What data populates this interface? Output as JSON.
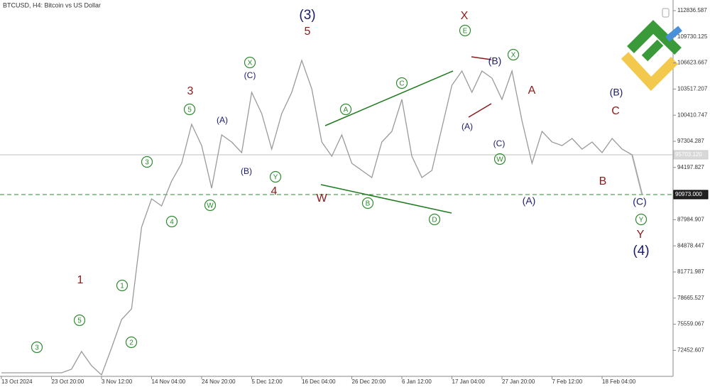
{
  "chart_data": {
    "type": "line",
    "title": "BTCUSD, H4:  Bitcoin vs US Dollar",
    "categories": [
      "13 Oct 2024",
      null,
      null,
      null,
      null,
      "23 Oct 20:00",
      null,
      null,
      null,
      null,
      "3 Nov 12:00",
      null,
      null,
      null,
      null,
      "14 Nov 04:00",
      null,
      null,
      null,
      null,
      "24 Nov 20:00",
      null,
      null,
      null,
      null,
      "5 Dec 12:00",
      null,
      null,
      null,
      null,
      "16 Dec 04:00",
      null,
      null,
      null,
      null,
      "26 Dec 20:00",
      null,
      null,
      null,
      null,
      "6 Jan 12:00",
      null,
      null,
      null,
      null,
      "17 Jan 04:00",
      null,
      null,
      null,
      null,
      "27 Jan 20:00",
      null,
      null,
      null,
      null,
      "7 Feb 12:00",
      null,
      null,
      null,
      null,
      "18 Feb 04:00",
      null,
      null,
      null,
      null
    ],
    "series": [
      {
        "color": "#9a9a9a",
        "values": [
          69783,
          69783,
          69783,
          69783,
          69783,
          69783,
          69783,
          70205,
          72315,
          70627,
          69530,
          72737,
          76114,
          77381,
          87089,
          90466,
          89621,
          92576,
          94687,
          99330,
          96797,
          91732,
          98063,
          97219,
          95953,
          103129,
          100596,
          96375,
          100596,
          103129,
          106928,
          103551,
          97219,
          95531,
          98063,
          94687,
          93842,
          92998,
          97219,
          98486,
          102284,
          95531,
          92998,
          93842,
          98908,
          103973,
          105661,
          103129,
          105661,
          104817,
          102284,
          105661,
          99752,
          94687,
          98486,
          97219,
          96797,
          97641,
          96375,
          97219,
          95953,
          97641,
          96375,
          95703.12,
          null
        ]
      },
      {
        "color": "#a8a8a8",
        "values": [
          null,
          null,
          null,
          null,
          null,
          null,
          null,
          null,
          null,
          null,
          null,
          null,
          null,
          null,
          null,
          null,
          null,
          null,
          null,
          null,
          null,
          null,
          null,
          null,
          null,
          null,
          null,
          null,
          null,
          null,
          null,
          null,
          null,
          null,
          null,
          null,
          null,
          null,
          null,
          null,
          null,
          null,
          null,
          null,
          null,
          null,
          null,
          null,
          null,
          null,
          null,
          null,
          null,
          null,
          null,
          null,
          null,
          null,
          null,
          null,
          null,
          null,
          null,
          95703.12,
          90973
        ]
      }
    ],
    "ylim": [
      69363,
      114103
    ],
    "yticks": [
      {
        "value": 112836.587,
        "label": "112836.587"
      },
      {
        "value": 109730.125,
        "label": "109730.125"
      },
      {
        "value": 106623.667,
        "label": "106623.667"
      },
      {
        "value": 103517.207,
        "label": "103517.207"
      },
      {
        "value": 100410.747,
        "label": "100410.747"
      },
      {
        "value": 97304.287,
        "label": "97304.287"
      },
      {
        "value": 94197.827,
        "label": "94197.827"
      },
      {
        "value": 87984.907,
        "label": "87984.907"
      },
      {
        "value": 84878.447,
        "label": "84878.447"
      },
      {
        "value": 81771.987,
        "label": "81771.987"
      },
      {
        "value": 78665.527,
        "label": "78665.527"
      },
      {
        "value": 75559.067,
        "label": "75559.067"
      },
      {
        "value": 72452.607,
        "label": "72452.607"
      }
    ],
    "reference_lines": [
      {
        "value": 95703.12,
        "label": "95703.120",
        "color": "#c0c0c0"
      },
      {
        "value": 90973,
        "label": "90973.000",
        "color": "#2e8b2e"
      }
    ],
    "annotations": {
      "circled": [
        "3",
        "5",
        "1",
        "2",
        "3",
        "4",
        "5",
        "W",
        "X",
        "Y",
        "A",
        "B",
        "C",
        "D",
        "E",
        "X",
        "W",
        "Y"
      ],
      "red": [
        "1",
        "3",
        "5",
        "4",
        "W",
        "X",
        "A",
        "C",
        "B",
        "Y"
      ],
      "navy": [
        "(3)",
        "(A)",
        "(C)",
        "(B)",
        "(B)",
        "(A)",
        "(C)",
        "(A)",
        "(B)",
        "(C)",
        "(4)"
      ]
    }
  }
}
